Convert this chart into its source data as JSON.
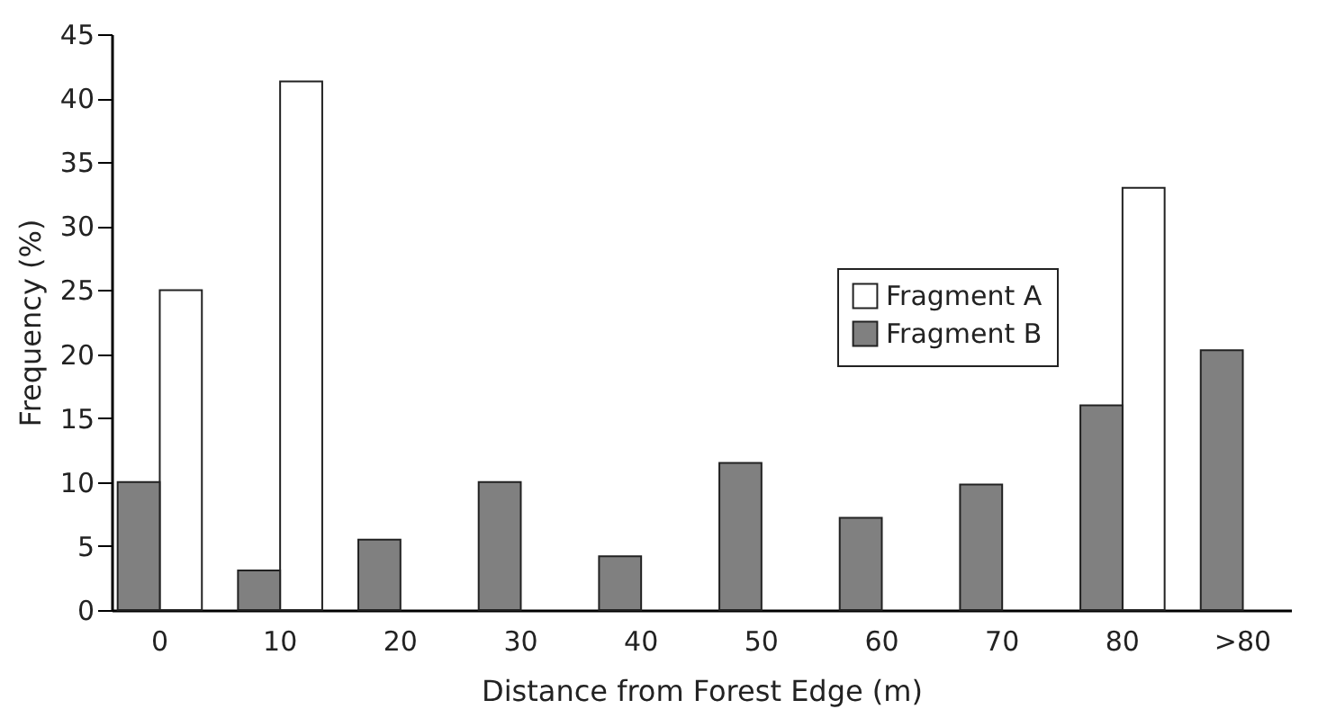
{
  "chart_data": {
    "type": "bar",
    "xlabel": "Distance from Forest Edge (m)",
    "ylabel": "Frequency (%)",
    "categories": [
      "0",
      "10",
      "20",
      "30",
      "40",
      "50",
      "60",
      "70",
      "80",
      ">80"
    ],
    "series": [
      {
        "name": "Fragment A",
        "color": "#ffffff",
        "values": [
          25,
          41.3,
          null,
          null,
          null,
          null,
          null,
          null,
          33,
          null
        ]
      },
      {
        "name": "Fragment B",
        "color": "#808080",
        "values": [
          10,
          3.1,
          5.5,
          10,
          4.2,
          11.5,
          7.2,
          9.8,
          16,
          20.3
        ]
      }
    ],
    "ylim": [
      0,
      45
    ],
    "yticks": [
      0,
      5,
      10,
      15,
      20,
      25,
      30,
      35,
      40,
      45
    ],
    "grid": false,
    "legend": "top right"
  }
}
